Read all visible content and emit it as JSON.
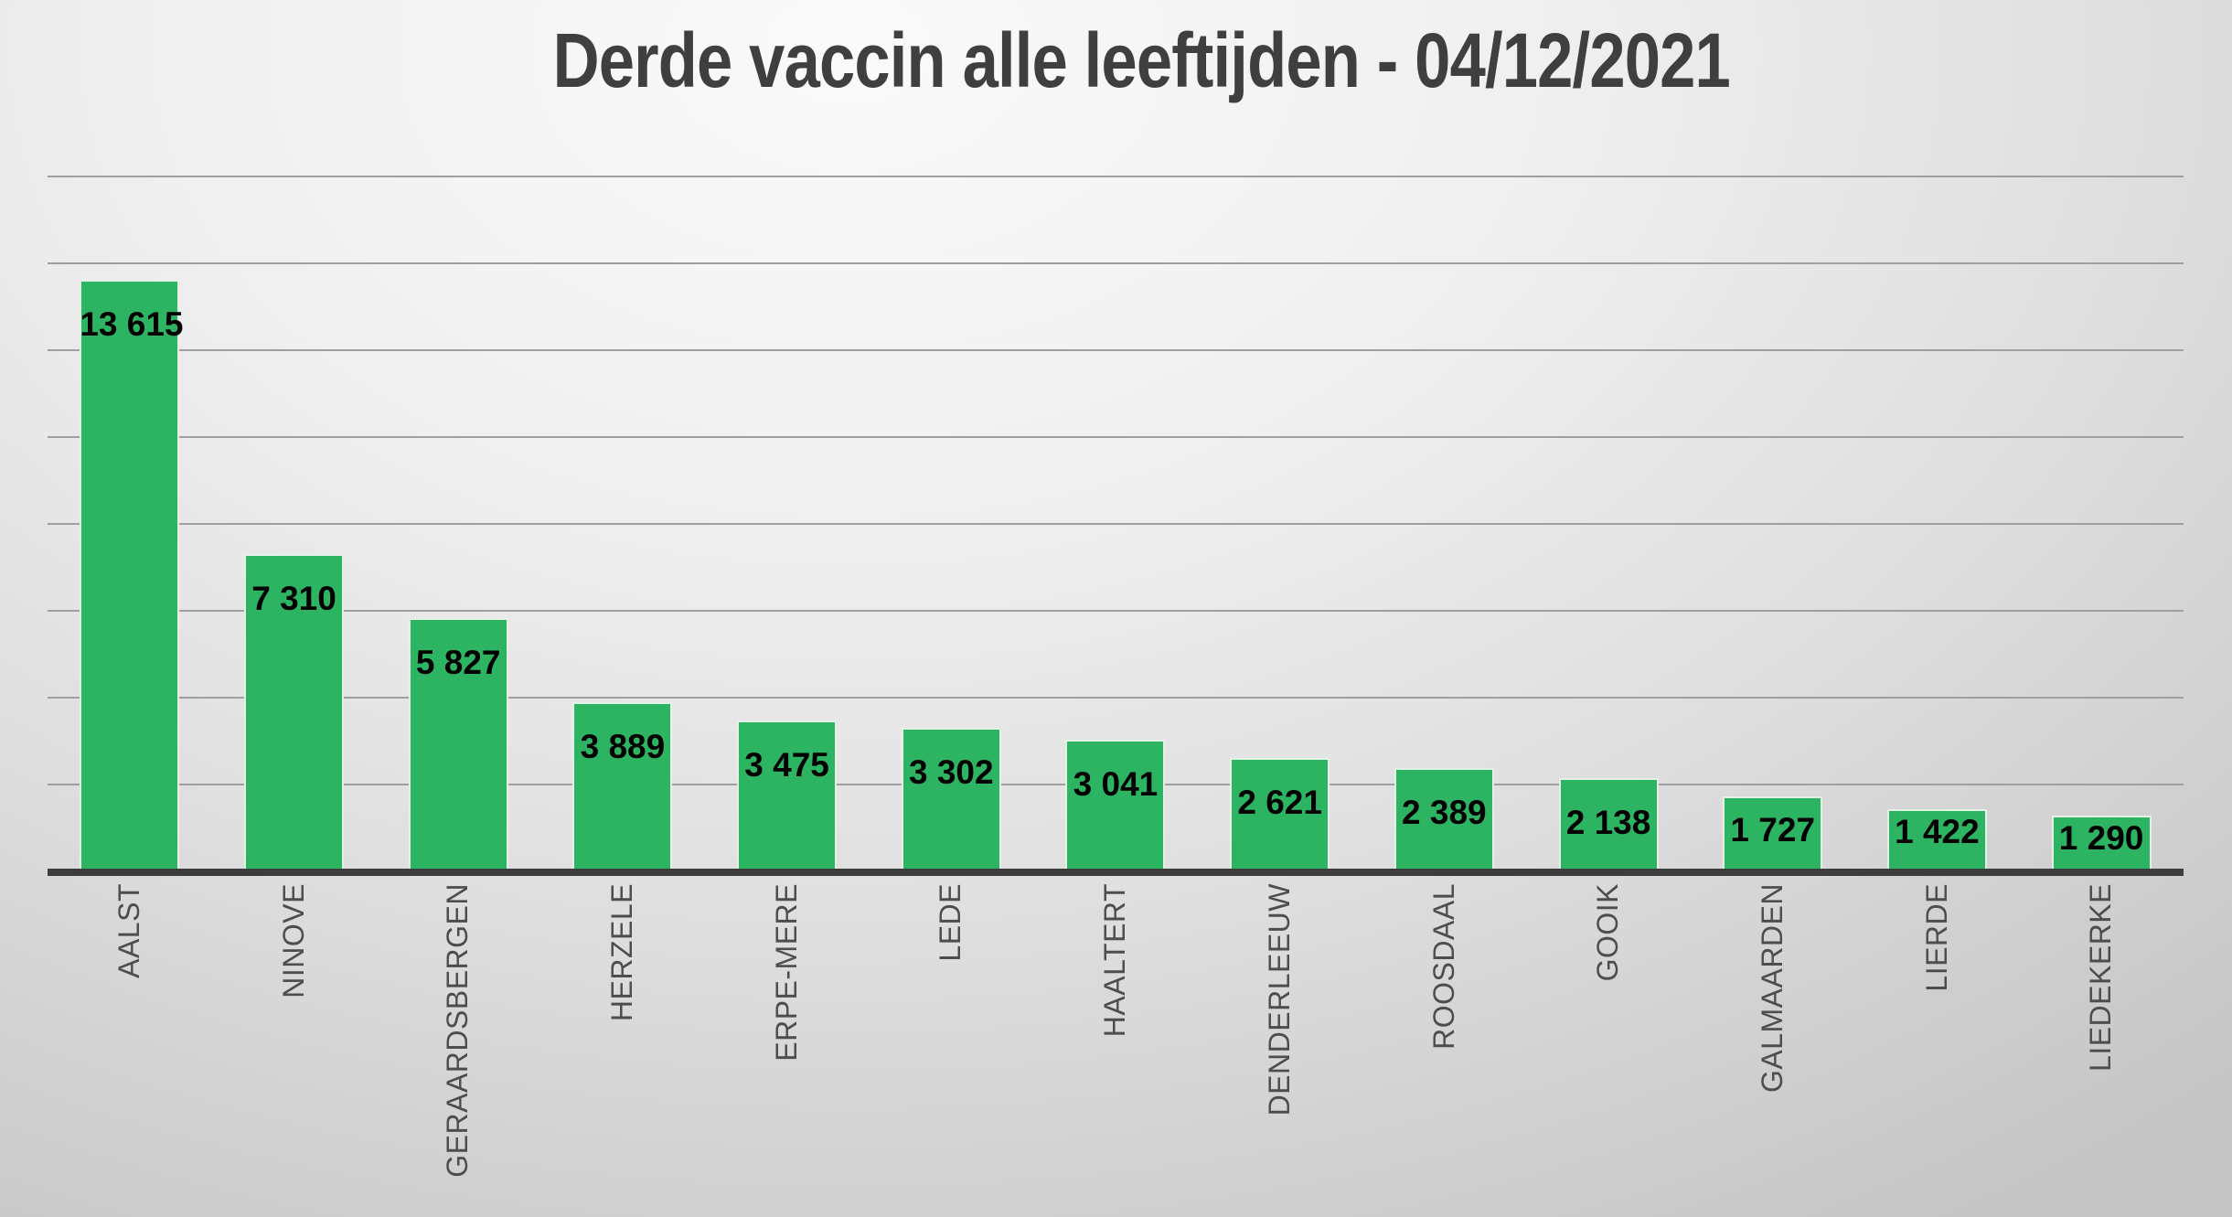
{
  "title": "Derde vaccin alle leeftijden - 04/12/2021",
  "chart_data": {
    "type": "bar",
    "title": "Derde vaccin alle leeftijden - 04/12/2021",
    "categories": [
      "AALST",
      "NINOVE",
      "GERAARDSBERGEN",
      "HERZELE",
      "ERPE-MERE",
      "LEDE",
      "HAALTERT",
      "DENDERLEEUW",
      "ROOSDAAL",
      "GOOIK",
      "GALMAARDEN",
      "LIERDE",
      "LIEDEKERKE"
    ],
    "values": [
      13615,
      7310,
      5827,
      3889,
      3475,
      3302,
      3041,
      2621,
      2389,
      2138,
      1727,
      1422,
      1290
    ],
    "value_labels": [
      "13 615",
      "7 310",
      "5 827",
      "3 889",
      "3 475",
      "3 302",
      "3 041",
      "2 621",
      "2 389",
      "2 138",
      "1 727",
      "1 422",
      "1 290"
    ],
    "xlabel": "",
    "ylabel": "",
    "ylim": [
      0,
      16000
    ],
    "gridline_step": 2000,
    "grid": true,
    "legend": "none",
    "value_label_position": "inside-end",
    "category_label_rotation_deg": -90,
    "colors": {
      "bar_fill": "#2db463",
      "bar_border": "#e3f1e7",
      "axis_line": "#3d3d3d",
      "gridline": "#9f9f9f",
      "title_text": "#3f3f3f",
      "category_text": "#4d4d4d",
      "value_text": "#000000"
    }
  }
}
